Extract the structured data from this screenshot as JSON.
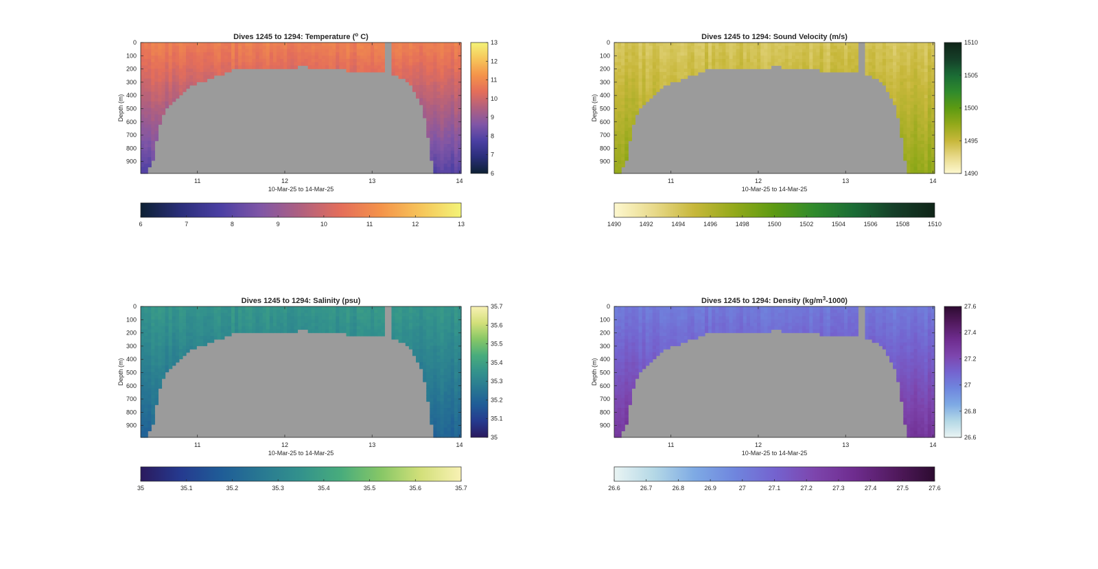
{
  "figure": {
    "background": "#ffffff",
    "no_data_color": "#9b9b9b"
  },
  "chart_data": [
    {
      "type": "heatmap",
      "variable": "temperature",
      "title": "Dives 1245 to 1294: Temperature (",
      "title_sup": "o",
      "title_end": " C)",
      "xlabel": "10-Mar-25 to 14-Mar-25",
      "ylabel": "Depth (m)",
      "xlim": [
        10.35,
        14.02
      ],
      "ylim": [
        0,
        990
      ],
      "xticks": [
        11,
        12,
        13,
        14
      ],
      "xtick_labels": [
        "11",
        "12",
        "13",
        "14"
      ],
      "yticks": [
        0,
        100,
        200,
        300,
        400,
        500,
        600,
        700,
        800,
        900
      ],
      "ytick_labels": [
        "0",
        "100",
        "200",
        "300",
        "400",
        "500",
        "600",
        "700",
        "800",
        "900"
      ],
      "colormap": [
        "#0d2033",
        "#2a2e7a",
        "#4b3fa3",
        "#8056a6",
        "#b0607f",
        "#e46e5a",
        "#f4934a",
        "#f6c55a",
        "#f3f377"
      ],
      "clim": [
        6,
        13
      ],
      "right_colorbar_ticks": [
        6,
        7,
        8,
        9,
        10,
        11,
        12,
        13
      ],
      "right_colorbar_labels": [
        "6",
        "7",
        "8",
        "9",
        "10",
        "11",
        "12",
        "13"
      ],
      "bottom_colorbar_ticks": [
        6,
        7,
        8,
        9,
        10,
        11,
        12,
        13
      ],
      "bottom_colorbar_labels": [
        "6",
        "7",
        "8",
        "9",
        "10",
        "11",
        "12",
        "13"
      ],
      "surface_value": 10.8,
      "deep_value": 7.9,
      "edge_band_note": "values at sides",
      "gap_x": [
        13.15,
        13.22
      ],
      "profile_x": [
        10.35,
        10.42,
        10.5,
        10.55,
        10.62,
        10.7,
        10.8,
        10.9,
        11.0,
        11.1,
        11.2,
        11.3,
        11.4,
        11.5,
        11.6,
        11.7,
        11.8,
        11.9,
        12.0,
        12.1,
        12.2,
        12.3,
        12.4,
        12.5,
        12.6,
        12.7,
        12.8,
        12.9,
        13.0,
        13.1,
        13.2,
        13.3,
        13.4,
        13.5,
        13.55,
        13.6,
        13.65,
        13.7,
        14.02
      ],
      "profile_max_depth": [
        990,
        990,
        870,
        640,
        530,
        460,
        390,
        340,
        310,
        290,
        255,
        235,
        210,
        185,
        210,
        205,
        200,
        200,
        198,
        195,
        180,
        190,
        190,
        195,
        200,
        210,
        215,
        220,
        220,
        230,
        230,
        250,
        300,
        380,
        460,
        560,
        760,
        990,
        990
      ]
    },
    {
      "type": "heatmap",
      "variable": "sound_velocity",
      "title": "Dives 1245 to 1294: Sound Velocity (m/s)",
      "title_sup": "",
      "title_end": "",
      "xlabel": "10-Mar-25 to 14-Mar-25",
      "ylabel": "Depth (m)",
      "xlim": [
        10.35,
        14.02
      ],
      "ylim": [
        0,
        990
      ],
      "xticks": [
        11,
        12,
        13,
        14
      ],
      "xtick_labels": [
        "11",
        "12",
        "13",
        "14"
      ],
      "yticks": [
        0,
        100,
        200,
        300,
        400,
        500,
        600,
        700,
        800,
        900
      ],
      "ytick_labels": [
        "0",
        "100",
        "200",
        "300",
        "400",
        "500",
        "600",
        "700",
        "800",
        "900"
      ],
      "colormap": [
        "#fdf8cf",
        "#e8d98a",
        "#c7b73a",
        "#93a91a",
        "#5c9a12",
        "#2f8a2c",
        "#1a6b35",
        "#153e28",
        "#0f2418"
      ],
      "clim": [
        1490,
        1510
      ],
      "right_colorbar_ticks": [
        1490,
        1495,
        1500,
        1505,
        1510
      ],
      "right_colorbar_labels": [
        "1490",
        "1495",
        "1500",
        "1505",
        "1510"
      ],
      "bottom_colorbar_ticks": [
        1490,
        1492,
        1494,
        1496,
        1498,
        1500,
        1502,
        1504,
        1506,
        1508,
        1510
      ],
      "bottom_colorbar_labels": [
        "1490",
        "1492",
        "1494",
        "1496",
        "1498",
        "1500",
        "1502",
        "1504",
        "1506",
        "1508",
        "1510"
      ],
      "surface_value": 1494.0,
      "deep_value": 1497.5,
      "gap_x": [
        13.15,
        13.22
      ],
      "profile_x": [
        10.35,
        10.42,
        10.5,
        10.55,
        10.62,
        10.7,
        10.8,
        10.9,
        11.0,
        11.1,
        11.2,
        11.3,
        11.4,
        11.5,
        11.6,
        11.7,
        11.8,
        11.9,
        12.0,
        12.1,
        12.2,
        12.3,
        12.4,
        12.5,
        12.6,
        12.7,
        12.8,
        12.9,
        13.0,
        13.1,
        13.2,
        13.3,
        13.4,
        13.5,
        13.55,
        13.6,
        13.65,
        13.7,
        14.02
      ],
      "profile_max_depth": [
        990,
        990,
        870,
        640,
        530,
        460,
        390,
        340,
        310,
        290,
        255,
        235,
        210,
        185,
        210,
        205,
        200,
        200,
        198,
        195,
        180,
        190,
        190,
        195,
        200,
        210,
        215,
        220,
        220,
        230,
        230,
        250,
        300,
        380,
        460,
        560,
        760,
        990,
        990
      ]
    },
    {
      "type": "heatmap",
      "variable": "salinity",
      "title": "Dives 1245 to 1294: Salinity (psu)",
      "title_sup": "",
      "title_end": "",
      "xlabel": "10-Mar-25 to 14-Mar-25",
      "ylabel": "Depth (m)",
      "xlim": [
        10.35,
        14.02
      ],
      "ylim": [
        0,
        990
      ],
      "xticks": [
        11,
        12,
        13,
        14
      ],
      "xtick_labels": [
        "11",
        "12",
        "13",
        "14"
      ],
      "yticks": [
        0,
        100,
        200,
        300,
        400,
        500,
        600,
        700,
        800,
        900
      ],
      "ytick_labels": [
        "0",
        "100",
        "200",
        "300",
        "400",
        "500",
        "600",
        "700",
        "800",
        "900"
      ],
      "colormap": [
        "#2a1a5e",
        "#253a8f",
        "#1f5c97",
        "#287892",
        "#33928c",
        "#48ac7c",
        "#87c766",
        "#d3e07a",
        "#f8f1b4"
      ],
      "clim": [
        35.0,
        35.7
      ],
      "right_colorbar_ticks": [
        35.0,
        35.1,
        35.2,
        35.3,
        35.4,
        35.5,
        35.6,
        35.7
      ],
      "right_colorbar_labels": [
        "35",
        "35.1",
        "35.2",
        "35.3",
        "35.4",
        "35.5",
        "35.6",
        "35.7"
      ],
      "bottom_colorbar_ticks": [
        35.0,
        35.1,
        35.2,
        35.3,
        35.4,
        35.5,
        35.6,
        35.7
      ],
      "bottom_colorbar_labels": [
        "35",
        "35.1",
        "35.2",
        "35.3",
        "35.4",
        "35.5",
        "35.6",
        "35.7"
      ],
      "surface_value": 35.36,
      "deep_value": 35.2,
      "gap_x": [
        13.15,
        13.22
      ],
      "profile_x": [
        10.35,
        10.42,
        10.5,
        10.55,
        10.62,
        10.7,
        10.8,
        10.9,
        11.0,
        11.1,
        11.2,
        11.3,
        11.4,
        11.5,
        11.6,
        11.7,
        11.8,
        11.9,
        12.0,
        12.1,
        12.2,
        12.3,
        12.4,
        12.5,
        12.6,
        12.7,
        12.8,
        12.9,
        13.0,
        13.1,
        13.2,
        13.3,
        13.4,
        13.5,
        13.55,
        13.6,
        13.65,
        13.7,
        14.02
      ],
      "profile_max_depth": [
        990,
        990,
        870,
        640,
        530,
        460,
        390,
        340,
        310,
        290,
        255,
        235,
        210,
        185,
        210,
        205,
        200,
        200,
        198,
        195,
        180,
        190,
        190,
        195,
        200,
        210,
        215,
        220,
        220,
        230,
        230,
        250,
        300,
        380,
        460,
        560,
        760,
        990,
        990
      ]
    },
    {
      "type": "heatmap",
      "variable": "density",
      "title": "Dives 1245 to 1294: Density (kg/m",
      "title_sup": "3",
      "title_end": "-1000)",
      "xlabel": "10-Mar-25 to 14-Mar-25",
      "ylabel": "Depth (m)",
      "xlim": [
        10.35,
        14.02
      ],
      "ylim": [
        0,
        990
      ],
      "xticks": [
        11,
        12,
        13,
        14
      ],
      "xtick_labels": [
        "11",
        "12",
        "13",
        "14"
      ],
      "yticks": [
        0,
        100,
        200,
        300,
        400,
        500,
        600,
        700,
        800,
        900
      ],
      "ytick_labels": [
        "0",
        "100",
        "200",
        "300",
        "400",
        "500",
        "600",
        "700",
        "800",
        "900"
      ],
      "colormap": [
        "#e9f4f3",
        "#b4d8e6",
        "#7eaae4",
        "#6f86de",
        "#7463cf",
        "#7d45ad",
        "#6e2c8e",
        "#521a5f",
        "#2d0b30"
      ],
      "clim": [
        26.6,
        27.6
      ],
      "right_colorbar_ticks": [
        26.6,
        26.8,
        27.0,
        27.2,
        27.4,
        27.6
      ],
      "right_colorbar_labels": [
        "26.6",
        "26.8",
        "27",
        "27.2",
        "27.4",
        "27.6"
      ],
      "bottom_colorbar_ticks": [
        26.6,
        26.7,
        26.8,
        26.9,
        27.0,
        27.1,
        27.2,
        27.3,
        27.4,
        27.5,
        27.6
      ],
      "bottom_colorbar_labels": [
        "26.6",
        "26.7",
        "26.8",
        "26.9",
        "27",
        "27.1",
        "27.2",
        "27.3",
        "27.4",
        "27.5",
        "27.6"
      ],
      "surface_value": 27.02,
      "deep_value": 27.3,
      "gap_x": [
        13.15,
        13.22
      ],
      "profile_x": [
        10.35,
        10.42,
        10.5,
        10.55,
        10.62,
        10.7,
        10.8,
        10.9,
        11.0,
        11.1,
        11.2,
        11.3,
        11.4,
        11.5,
        11.6,
        11.7,
        11.8,
        11.9,
        12.0,
        12.1,
        12.2,
        12.3,
        12.4,
        12.5,
        12.6,
        12.7,
        12.8,
        12.9,
        13.0,
        13.1,
        13.2,
        13.3,
        13.4,
        13.5,
        13.55,
        13.6,
        13.65,
        13.7,
        14.02
      ],
      "profile_max_depth": [
        990,
        990,
        870,
        640,
        530,
        460,
        390,
        340,
        310,
        290,
        255,
        235,
        210,
        185,
        210,
        205,
        200,
        200,
        198,
        195,
        180,
        190,
        190,
        195,
        200,
        210,
        215,
        220,
        220,
        230,
        230,
        250,
        300,
        380,
        460,
        560,
        760,
        990,
        990
      ]
    }
  ]
}
